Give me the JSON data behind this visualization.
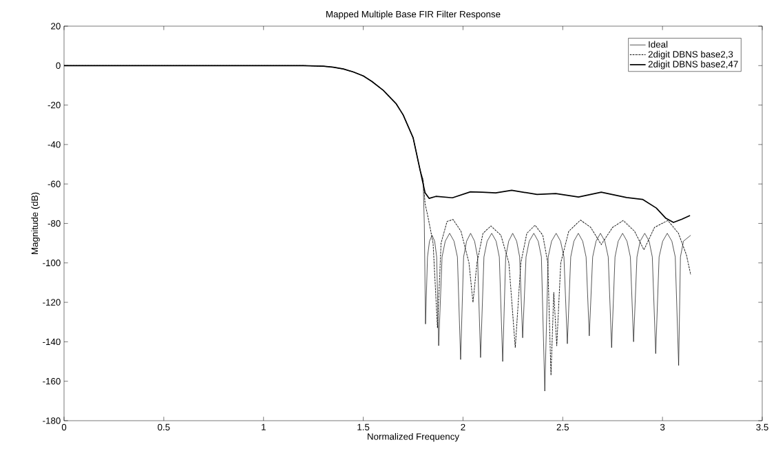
{
  "chart_data": {
    "type": "line",
    "title": "Mapped Multiple Base FIR Filter Response",
    "xlabel": "Normalized Frequency",
    "ylabel": "Magnitude (dB)",
    "xlim": [
      0,
      3.5
    ],
    "ylim": [
      -180,
      20
    ],
    "xticks": [
      0,
      0.5,
      1,
      1.5,
      2,
      2.5,
      3,
      3.5
    ],
    "yticks": [
      -180,
      -160,
      -140,
      -120,
      -100,
      -80,
      -60,
      -40,
      -20,
      0,
      20
    ],
    "legend": "top right",
    "grid": false,
    "marker": "none",
    "series": [
      {
        "name": "Ideal",
        "color": "#000000",
        "line_style": "solid",
        "x": [
          0,
          0.5,
          1.0,
          1.2,
          1.3,
          1.35,
          1.4,
          1.45,
          1.5,
          1.543,
          1.6,
          1.664,
          1.7,
          1.75,
          1.785,
          1.8,
          1.806,
          1.812,
          1.822,
          1.832,
          1.845,
          1.858,
          1.868,
          1.878,
          1.895,
          1.911,
          1.933,
          1.955,
          1.972,
          1.988,
          2.003,
          2.018,
          2.038,
          2.058,
          2.073,
          2.088,
          2.105,
          2.121,
          2.144,
          2.166,
          2.182,
          2.199,
          2.214,
          2.229,
          2.249,
          2.269,
          2.284,
          2.299,
          2.316,
          2.332,
          2.355,
          2.377,
          2.393,
          2.41,
          2.427,
          2.444,
          2.467,
          2.489,
          2.506,
          2.523,
          2.54,
          2.556,
          2.578,
          2.6,
          2.617,
          2.633,
          2.65,
          2.667,
          2.689,
          2.711,
          2.728,
          2.745,
          2.762,
          2.778,
          2.8,
          2.822,
          2.839,
          2.855,
          2.872,
          2.888,
          2.911,
          2.933,
          2.949,
          2.966,
          2.983,
          3.001,
          3.024,
          3.047,
          3.064,
          3.081,
          3.09,
          3.105,
          3.1416
        ],
        "values": [
          0,
          0,
          0,
          0,
          -0.3,
          -0.8,
          -1.7,
          -3.2,
          -5.2,
          -8,
          -12.5,
          -19.2,
          -25,
          -36.6,
          -53,
          -58,
          -80,
          -131,
          -97,
          -89,
          -86,
          -89,
          -97,
          -142,
          -97,
          -89,
          -85,
          -89,
          -97,
          -149,
          -97,
          -89,
          -85,
          -89,
          -97,
          -148,
          -97,
          -89,
          -85,
          -89,
          -97,
          -150,
          -97,
          -89,
          -85,
          -89,
          -97,
          -138,
          -97,
          -89,
          -85,
          -89,
          -97,
          -165,
          -97,
          -89,
          -85,
          -89,
          -97,
          -141,
          -97,
          -89,
          -85,
          -89,
          -97,
          -137,
          -97,
          -89,
          -85,
          -89,
          -97,
          -143,
          -97,
          -89,
          -85,
          -89,
          -97,
          -140,
          -97,
          -89,
          -85,
          -89,
          -97,
          -146,
          -97,
          -89,
          -85,
          -89,
          -97,
          -152,
          -97,
          -89,
          -86
        ]
      },
      {
        "name": "2digit DBNS base2,3",
        "color": "#000000",
        "line_style": "dashed",
        "x": [
          0,
          0.5,
          1.0,
          1.2,
          1.3,
          1.35,
          1.4,
          1.45,
          1.5,
          1.543,
          1.6,
          1.664,
          1.7,
          1.75,
          1.785,
          1.8,
          1.81,
          1.826,
          1.85,
          1.872,
          1.89,
          1.92,
          1.95,
          1.99,
          2.03,
          2.05,
          2.07,
          2.1,
          2.14,
          2.19,
          2.23,
          2.262,
          2.29,
          2.32,
          2.361,
          2.4,
          2.425,
          2.441,
          2.455,
          2.47,
          2.49,
          2.53,
          2.589,
          2.64,
          2.693,
          2.75,
          2.803,
          2.86,
          2.907,
          2.96,
          3.027,
          3.08,
          3.12,
          3.1416
        ],
        "values": [
          0,
          0,
          0,
          0,
          -0.3,
          -0.8,
          -1.7,
          -3.2,
          -5.2,
          -8,
          -12.5,
          -19.2,
          -25,
          -36.6,
          -53,
          -58,
          -70,
          -77.5,
          -90,
          -133,
          -90,
          -79,
          -78,
          -84,
          -100,
          -120,
          -100,
          -85,
          -81.3,
          -86,
          -100,
          -143,
          -100,
          -85,
          -80.9,
          -86,
          -100,
          -157,
          -115,
          -142,
          -100,
          -84,
          -78.3,
          -82,
          -90.7,
          -82,
          -78.5,
          -84,
          -93.4,
          -82,
          -78.5,
          -85,
          -96,
          -106
        ]
      },
      {
        "name": "2digit DBNS base2,47",
        "color": "#000000",
        "line_style": "solid",
        "x": [
          0,
          0.5,
          1.0,
          1.2,
          1.3,
          1.35,
          1.4,
          1.45,
          1.5,
          1.543,
          1.6,
          1.664,
          1.7,
          1.75,
          1.785,
          1.81,
          1.83,
          1.864,
          1.947,
          2.037,
          2.095,
          2.164,
          2.244,
          2.371,
          2.465,
          2.579,
          2.693,
          2.82,
          2.9,
          2.969,
          3.017,
          3.055,
          3.096,
          3.138
        ],
        "values": [
          0,
          0,
          0,
          0,
          -0.3,
          -0.8,
          -1.7,
          -3.2,
          -5.2,
          -8,
          -12.5,
          -19.2,
          -25,
          -36.6,
          -53,
          -64.5,
          -67.3,
          -66.3,
          -67,
          -64,
          -64.2,
          -64.5,
          -63.2,
          -65.3,
          -64.9,
          -66.6,
          -64.2,
          -66.9,
          -67.8,
          -72.2,
          -77.4,
          -79.5,
          -77.9,
          -76
        ]
      }
    ]
  }
}
